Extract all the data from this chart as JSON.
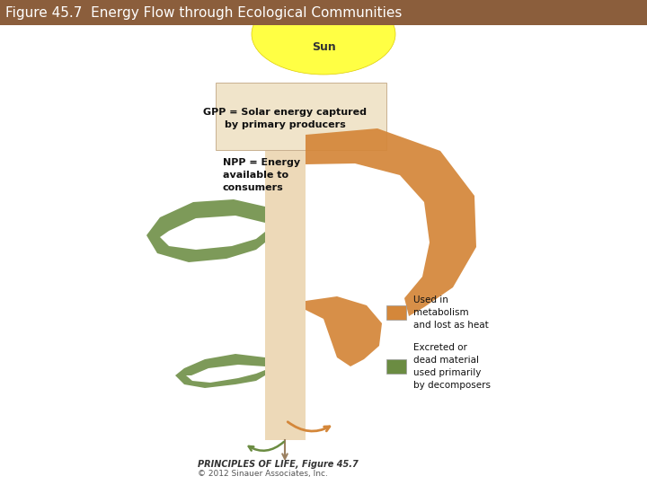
{
  "title": "Figure 45.7  Energy Flow through Ecological Communities",
  "title_bg": "#8B5E3C",
  "title_color": "#FFFFFF",
  "title_fontsize": 11,
  "bg_color": "#FFFFFF",
  "sun_color": "#FFFF44",
  "sun_text": "Sun",
  "orange_color": "#D4873A",
  "green_color": "#6B8C42",
  "stem_color": "#9B8060",
  "col_color": "#EDD9B8",
  "gpp_text": "GPP = Solar energy captured\nby primary producers",
  "npp_text": "NPP = Energy\navailable to\nconsumers",
  "legend_orange_text": "Used in\nmetabolism\nand lost as heat",
  "legend_green_text": "Excreted or\ndead material\nused primarily\nby decomposers",
  "footer_bold": "PRINCIPLES OF LIFE, Figure 45.7",
  "footer_normal": "© 2012 Sinauer Associates, Inc."
}
